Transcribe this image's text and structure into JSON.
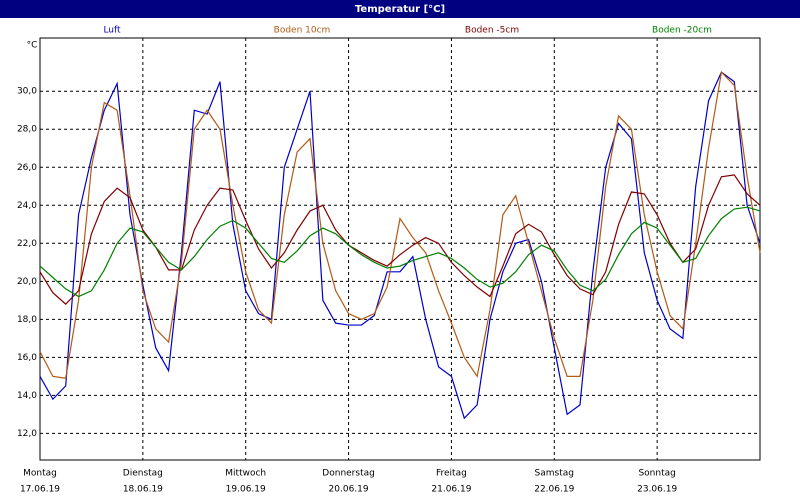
{
  "chart_data": {
    "type": "line",
    "title": "Temperatur [°C]",
    "y_unit": "°C",
    "x": [
      0,
      3,
      6,
      9,
      12,
      15,
      18,
      21,
      24,
      27,
      30,
      33,
      36,
      39,
      42,
      45,
      48,
      51,
      54,
      57,
      60,
      63,
      66,
      69,
      72,
      75,
      78,
      81,
      84,
      87,
      90,
      93,
      96,
      99,
      102,
      105,
      108,
      111,
      114,
      117,
      120,
      123,
      126,
      129,
      132,
      135,
      138,
      141,
      144,
      147,
      150,
      153,
      156,
      159,
      162,
      165,
      168
    ],
    "xlim": [
      0,
      168
    ],
    "xticks": [
      {
        "value": 0,
        "label": "Montag",
        "date": "17.06.19"
      },
      {
        "value": 24,
        "label": "Dienstag",
        "date": "18.06.19"
      },
      {
        "value": 48,
        "label": "Mittwoch",
        "date": "19.06.19"
      },
      {
        "value": 72,
        "label": "Donnerstag",
        "date": "20.06.19"
      },
      {
        "value": 96,
        "label": "Freitag",
        "date": "21.06.19"
      },
      {
        "value": 120,
        "label": "Samstag",
        "date": "22.06.19"
      },
      {
        "value": 144,
        "label": "Sonntag",
        "date": "23.06.19"
      }
    ],
    "ylim": [
      10.6,
      32.8
    ],
    "yticks": [
      {
        "value": 12,
        "label": "12,0"
      },
      {
        "value": 14,
        "label": "14,0"
      },
      {
        "value": 16,
        "label": "16,0"
      },
      {
        "value": 18,
        "label": "18,0"
      },
      {
        "value": 20,
        "label": "20,0"
      },
      {
        "value": 22,
        "label": "22,0"
      },
      {
        "value": 24,
        "label": "24,0"
      },
      {
        "value": 26,
        "label": "26,0"
      },
      {
        "value": 28,
        "label": "28,0"
      },
      {
        "value": 30,
        "label": "30,0"
      }
    ],
    "grid": true,
    "series": [
      {
        "name": "Luft",
        "color": "#0000cc",
        "values": [
          15.0,
          13.8,
          14.5,
          23.5,
          26.5,
          29.0,
          30.4,
          23.5,
          19.8,
          16.5,
          15.3,
          21.5,
          29.0,
          28.8,
          30.5,
          23.0,
          19.5,
          18.3,
          18.0,
          26.0,
          28.0,
          30.0,
          19.0,
          17.8,
          17.7,
          17.7,
          18.2,
          20.5,
          20.5,
          21.3,
          18.0,
          15.5,
          15.0,
          12.8,
          13.5,
          18.0,
          20.5,
          22.0,
          22.2,
          20.0,
          16.5,
          13.0,
          13.5,
          20.5,
          26.0,
          28.3,
          27.5,
          21.5,
          19.0,
          17.5,
          17.0,
          25.0,
          29.5,
          31.0,
          30.5,
          24.0,
          22.0
        ]
      },
      {
        "name": "Boden 10cm",
        "color": "#b35a14",
        "values": [
          16.3,
          15.0,
          14.9,
          19.0,
          26.0,
          29.4,
          29.0,
          24.5,
          19.5,
          17.5,
          16.8,
          21.0,
          28.0,
          29.0,
          28.0,
          24.0,
          20.5,
          18.5,
          17.8,
          23.5,
          26.8,
          27.5,
          22.0,
          19.5,
          18.3,
          18.0,
          18.3,
          19.7,
          23.3,
          22.3,
          21.5,
          19.5,
          17.8,
          16.0,
          15.0,
          18.5,
          23.5,
          24.5,
          22.0,
          19.5,
          17.0,
          15.0,
          15.0,
          19.0,
          25.0,
          28.7,
          28.0,
          23.5,
          20.5,
          18.2,
          17.5,
          22.0,
          27.0,
          31.0,
          30.3,
          25.5,
          21.5
        ]
      },
      {
        "name": "Boden -5cm",
        "color": "#800000",
        "values": [
          20.5,
          19.4,
          18.8,
          19.5,
          22.5,
          24.2,
          24.9,
          24.4,
          22.7,
          21.8,
          20.6,
          20.6,
          22.7,
          24.0,
          24.9,
          24.8,
          23.2,
          21.7,
          20.7,
          21.5,
          22.7,
          23.7,
          24.0,
          22.7,
          21.9,
          21.5,
          21.1,
          20.8,
          21.4,
          21.9,
          22.3,
          22.0,
          21.0,
          20.3,
          19.7,
          19.2,
          20.8,
          22.5,
          23.0,
          22.6,
          21.4,
          20.3,
          19.6,
          19.3,
          20.5,
          23.0,
          24.7,
          24.6,
          23.5,
          22.0,
          21.0,
          21.7,
          24.0,
          25.5,
          25.6,
          24.6,
          24.0
        ]
      },
      {
        "name": "Boden -20cm",
        "color": "#008000",
        "values": [
          20.8,
          20.2,
          19.6,
          19.2,
          19.5,
          20.6,
          22.0,
          22.8,
          22.6,
          21.8,
          21.0,
          20.6,
          21.3,
          22.2,
          22.9,
          23.2,
          22.8,
          22.0,
          21.2,
          21.0,
          21.6,
          22.4,
          22.8,
          22.5,
          21.9,
          21.4,
          21.0,
          20.7,
          20.8,
          21.1,
          21.3,
          21.5,
          21.2,
          20.7,
          20.1,
          19.7,
          19.9,
          20.5,
          21.4,
          21.9,
          21.6,
          20.6,
          19.8,
          19.5,
          20.1,
          21.4,
          22.5,
          23.1,
          22.8,
          21.9,
          21.0,
          21.2,
          22.4,
          23.3,
          23.8,
          23.9,
          23.7
        ]
      }
    ]
  }
}
